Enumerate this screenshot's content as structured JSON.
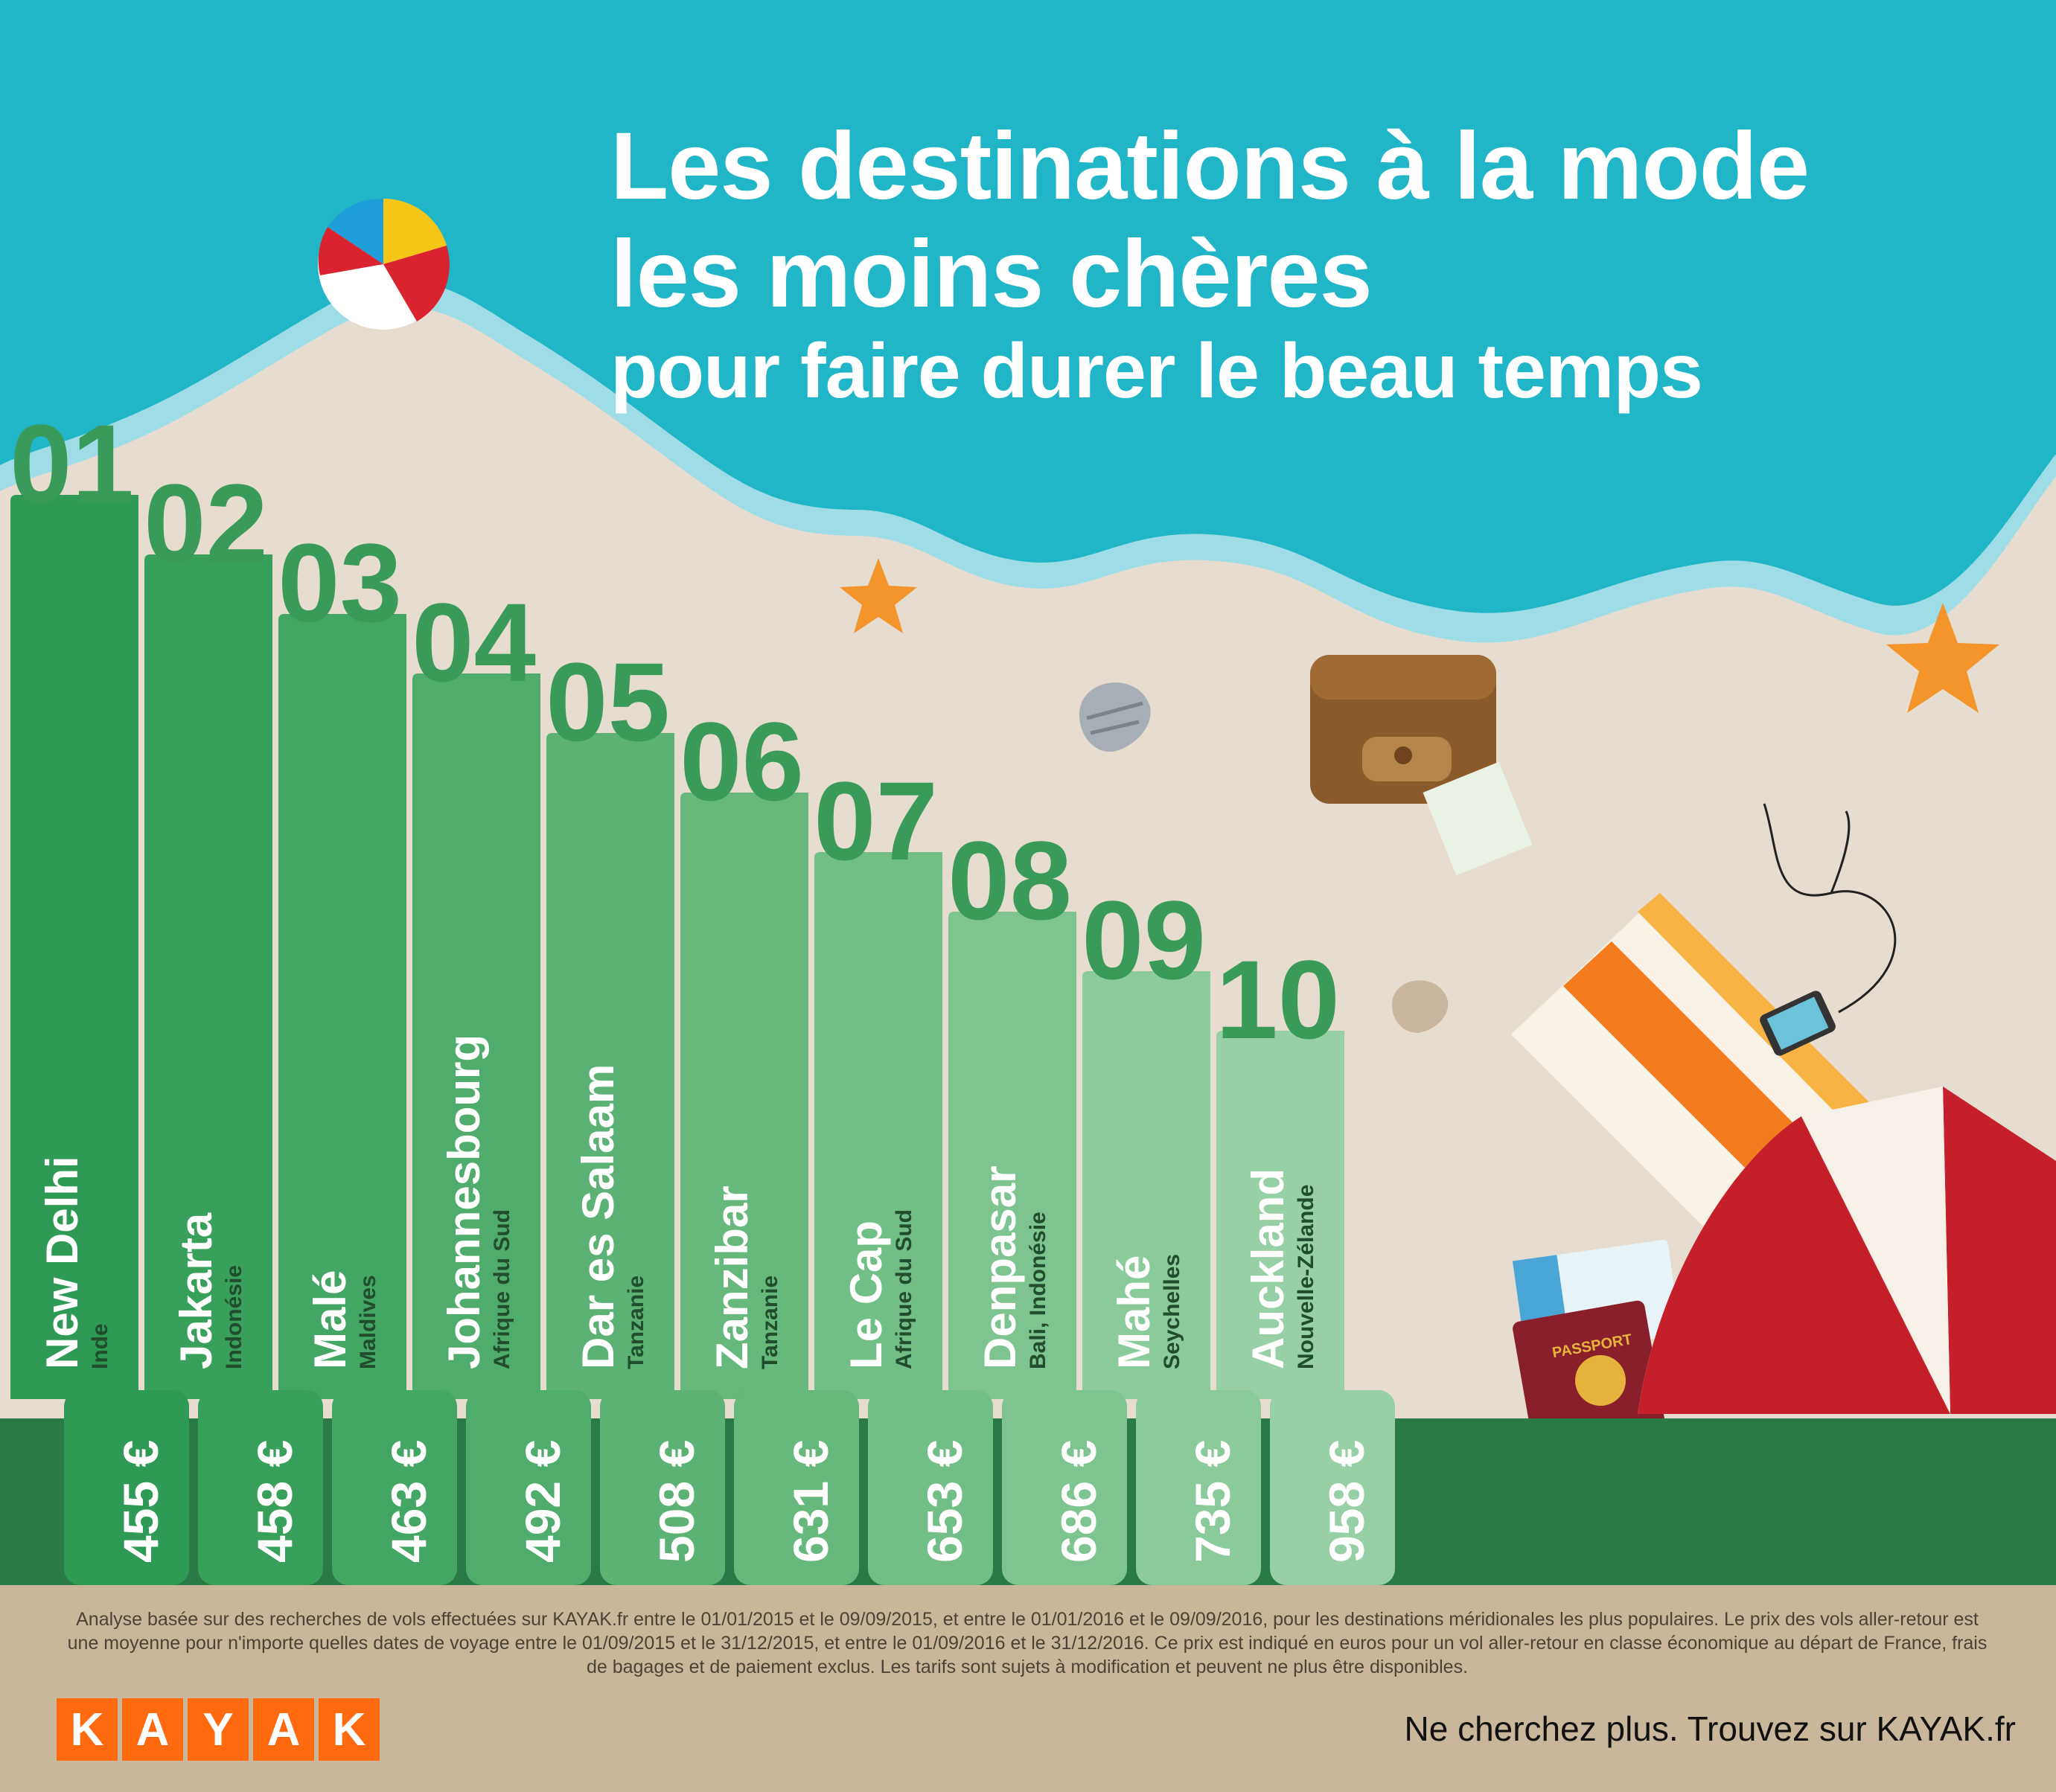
{
  "header": {
    "title_line1": "Les destinations à la mode",
    "title_line2": "les moins chères",
    "subtitle": "pour faire durer le beau temps"
  },
  "chart_data": {
    "type": "bar",
    "title": "Les destinations à la mode les moins chères pour faire durer le beau temps",
    "ranks": [
      "01",
      "02",
      "03",
      "04",
      "05",
      "06",
      "07",
      "08",
      "09",
      "10"
    ],
    "categories": [
      "New Delhi",
      "Jakarta",
      "Malé",
      "Johannesbourg",
      "Dar es Salaam",
      "Zanzibar",
      "Le Cap",
      "Denpasar",
      "Mahé",
      "Auckland"
    ],
    "countries": [
      "Inde",
      "Indonésie",
      "Maldives",
      "Afrique du Sud",
      "Tanzanie",
      "Tanzanie",
      "Afrique du Sud",
      "Bali, Indonésie",
      "Seychelles",
      "Nouvelle-Zélande"
    ],
    "values": [
      455,
      458,
      463,
      492,
      508,
      631,
      653,
      686,
      735,
      958
    ],
    "price_labels": [
      "455 €",
      "458 €",
      "463 €",
      "492 €",
      "508 €",
      "631 €",
      "653 €",
      "686 €",
      "735 €",
      "958 €"
    ],
    "unit": "€"
  },
  "footer": {
    "footnote": "Analyse basée sur des recherches de vols effectuées sur KAYAK.fr entre le 01/01/2015 et le 09/09/2015, et entre le 01/01/2016 et le 09/09/2016, pour les destinations méridionales les plus populaires. Le prix des vols aller-retour est une moyenne pour n'importe quelles dates de voyage entre le 01/09/2015 et le 31/12/2015, et entre le 01/09/2016 et le 31/12/2016. Ce prix est indiqué en euros pour un vol aller-retour en classe économique au départ de France, frais de bagages et de paiement exclus. Les tarifs sont sujets à modification et peuvent ne plus être disponibles.",
    "logo_letters": [
      "K",
      "A",
      "Y",
      "A",
      "K"
    ],
    "tagline": "Ne cherchez plus. Trouvez sur KAYAK.fr"
  },
  "decor": {
    "passport_label": "PASSPORT"
  },
  "colors": {
    "sea": "#21b5c8",
    "sand": "#e6ddd0",
    "green_dark": "#2a7a48",
    "footer": "#c9b79c",
    "logo": "#ff690f"
  }
}
